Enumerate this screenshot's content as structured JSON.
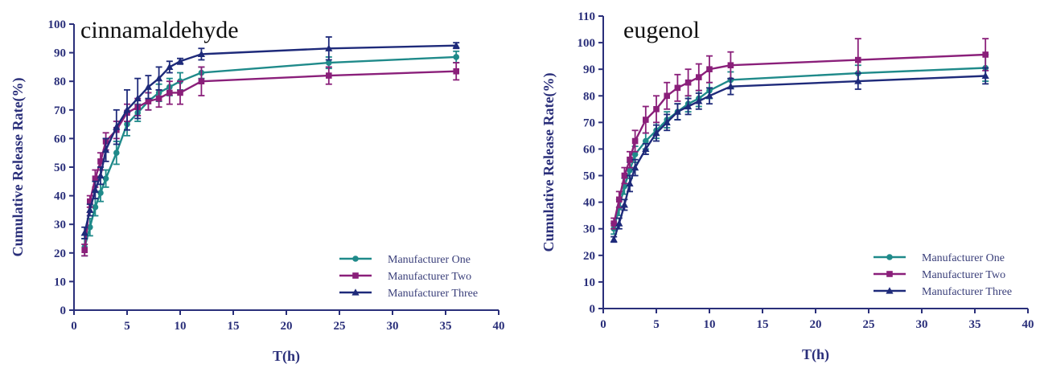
{
  "chart_data": [
    {
      "type": "line",
      "title": "cinnamaldehyde",
      "xlabel": "T(h)",
      "ylabel": "Cumulative Release Rate(%)",
      "xlim": [
        0,
        40
      ],
      "ylim": [
        0,
        100
      ],
      "xticks": [
        0,
        5,
        10,
        15,
        20,
        25,
        30,
        35,
        40
      ],
      "yticks": [
        0,
        10,
        20,
        30,
        40,
        50,
        60,
        70,
        80,
        90,
        100
      ],
      "grid": false,
      "legend_position": "bottom-right",
      "x": [
        1,
        1.5,
        2,
        2.5,
        3,
        4,
        5,
        6,
        7,
        8,
        9,
        10,
        12,
        24,
        36
      ],
      "series": [
        {
          "name": "Manufacturer One",
          "color": "#1f8a8a",
          "marker": "circle",
          "values": [
            22,
            29,
            36,
            41,
            46,
            55,
            65,
            69,
            73,
            76,
            78,
            80,
            83,
            86.5,
            88.5
          ],
          "errors": [
            3,
            3,
            3,
            3,
            3,
            4,
            4,
            3,
            3,
            3,
            3,
            3,
            2,
            2,
            2
          ]
        },
        {
          "name": "Manufacturer Two",
          "color": "#8a1f7a",
          "marker": "square",
          "values": [
            21,
            38,
            46,
            52,
            59,
            63,
            69,
            71,
            73,
            74,
            76,
            76,
            80,
            82,
            83.5
          ],
          "errors": [
            2,
            2,
            3,
            3,
            3,
            3,
            3,
            3,
            3,
            3,
            4,
            4,
            5,
            3,
            3
          ]
        },
        {
          "name": "Manufacturer Three",
          "color": "#1e2a7a",
          "marker": "triangle",
          "values": [
            27,
            35,
            42,
            47,
            56,
            64,
            70,
            74,
            78,
            81,
            85,
            87,
            89.5,
            91.5,
            92.5
          ],
          "errors": [
            2,
            2,
            3,
            3,
            4,
            6,
            7,
            7,
            4,
            4,
            2,
            1,
            2,
            4,
            1
          ]
        }
      ]
    },
    {
      "type": "line",
      "title": "eugenol",
      "xlabel": "T(h)",
      "ylabel": "Cumulative Release Rate(%)",
      "xlim": [
        0,
        40
      ],
      "ylim": [
        0,
        110
      ],
      "xticks": [
        0,
        5,
        10,
        15,
        20,
        25,
        30,
        35,
        40
      ],
      "yticks": [
        0,
        10,
        20,
        30,
        40,
        50,
        60,
        70,
        80,
        90,
        100,
        110
      ],
      "grid": false,
      "legend_position": "bottom-right",
      "x": [
        1,
        1.5,
        2,
        2.5,
        3,
        4,
        5,
        6,
        7,
        8,
        9,
        10,
        12,
        24,
        36
      ],
      "series": [
        {
          "name": "Manufacturer One",
          "color": "#1f8a8a",
          "marker": "circle",
          "values": [
            30,
            38,
            46,
            52,
            58,
            63,
            67,
            71,
            74,
            77,
            79,
            82,
            86,
            88.5,
            90.5
          ],
          "errors": [
            2,
            3,
            3,
            3,
            3,
            3,
            3,
            3,
            3,
            3,
            3,
            3,
            3,
            3,
            5
          ]
        },
        {
          "name": "Manufacturer Two",
          "color": "#8a1f7a",
          "marker": "square",
          "values": [
            32,
            41,
            50,
            56,
            63,
            71,
            75,
            80,
            83,
            85,
            87,
            90,
            91.5,
            93.5,
            95.5
          ],
          "errors": [
            2,
            3,
            3,
            3,
            4,
            5,
            5,
            5,
            5,
            5,
            5,
            5,
            5,
            8,
            6
          ]
        },
        {
          "name": "Manufacturer Three",
          "color": "#1e2a7a",
          "marker": "triangle",
          "values": [
            26,
            32,
            39,
            47,
            53,
            60,
            66,
            70,
            74,
            76,
            78,
            80,
            83.5,
            85.5,
            87.5
          ],
          "errors": [
            1,
            2,
            2,
            3,
            3,
            2,
            3,
            3,
            3,
            3,
            3,
            3,
            3,
            3,
            3
          ]
        }
      ]
    }
  ]
}
